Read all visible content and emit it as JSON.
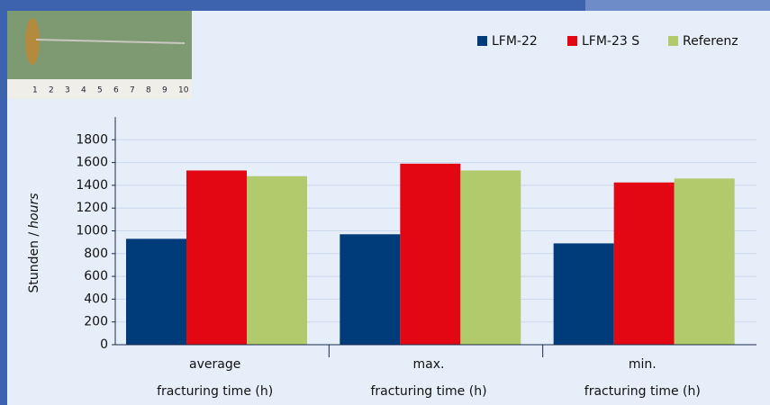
{
  "photo_ruler": [
    "1",
    "2",
    "3",
    "4",
    "5",
    "6",
    "7",
    "8",
    "9",
    "10"
  ],
  "chart_data": {
    "type": "bar",
    "y_label": [
      "Stunden /",
      "hours"
    ],
    "categories": [
      [
        "average",
        "fracturing time (h)"
      ],
      [
        "max.",
        "fracturing time (h)"
      ],
      [
        "min.",
        "fracturing time (h)"
      ]
    ],
    "series": [
      {
        "name": "LFM-22",
        "color": "#003b7a",
        "values": [
          930,
          970,
          890
        ]
      },
      {
        "name": "LFM-23 S",
        "color": "#e30613",
        "values": [
          1530,
          1590,
          1425
        ]
      },
      {
        "name": "Referenz",
        "color": "#b1ca6c",
        "values": [
          1480,
          1530,
          1460
        ]
      }
    ],
    "ylim": [
      0,
      2000
    ],
    "yticks": [
      0,
      200,
      400,
      600,
      800,
      1000,
      1200,
      1400,
      1600,
      1800
    ],
    "grid": true,
    "legend": "top-right"
  }
}
